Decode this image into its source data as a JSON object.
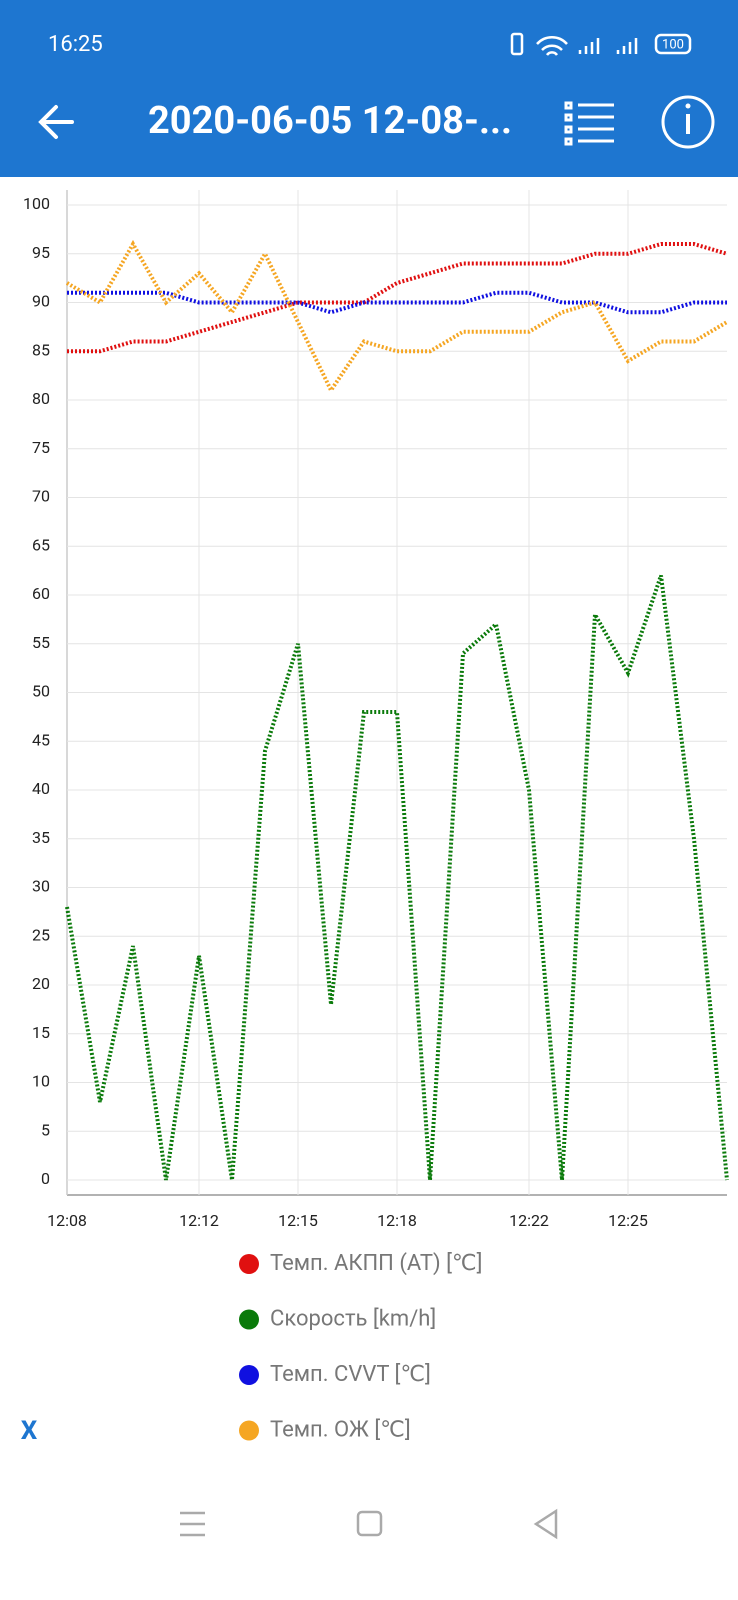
{
  "status_bar": {
    "time": "16:25",
    "battery": "100"
  },
  "toolbar": {
    "title": "2020-06-05 12-08-..."
  },
  "close_button": "X",
  "chart_data": {
    "type": "line",
    "x": [
      "12:08",
      "12:09",
      "12:10",
      "12:11",
      "12:12",
      "12:13",
      "12:14",
      "12:15",
      "12:16",
      "12:17",
      "12:18",
      "12:19",
      "12:20",
      "12:21",
      "12:22",
      "12:23",
      "12:24",
      "12:25",
      "12:26",
      "12:27",
      "12:28"
    ],
    "series": [
      {
        "name": "Темп. АКПП (AT) [℃]",
        "color": "#e01010",
        "values": [
          85,
          85,
          86,
          86,
          87,
          88,
          89,
          90,
          90,
          90,
          92,
          93,
          94,
          94,
          94,
          94,
          95,
          95,
          96,
          96,
          95
        ]
      },
      {
        "name": "Скорость [km/h]",
        "color": "#0a7a0a",
        "values": [
          28,
          8,
          24,
          0,
          23,
          0,
          44,
          55,
          18,
          48,
          48,
          0,
          54,
          57,
          40,
          0,
          58,
          52,
          62,
          35,
          0
        ]
      },
      {
        "name": "Темп. CVVT [℃]",
        "color": "#1010e0",
        "values": [
          91,
          91,
          91,
          91,
          90,
          90,
          90,
          90,
          89,
          90,
          90,
          90,
          90,
          91,
          91,
          90,
          90,
          89,
          89,
          90,
          90
        ]
      },
      {
        "name": "Темп. ОЖ [℃]",
        "color": "#f5a623",
        "values": [
          92,
          90,
          96,
          90,
          93,
          89,
          95,
          88,
          81,
          86,
          85,
          85,
          87,
          87,
          87,
          89,
          90,
          84,
          86,
          86,
          88
        ]
      }
    ],
    "xlim": [
      "12:08",
      "12:28"
    ],
    "xticks": [
      "12:08",
      "12:12",
      "12:15",
      "12:18",
      "12:22",
      "12:25"
    ],
    "ylim": [
      0,
      100
    ],
    "yticks": [
      0,
      5,
      10,
      15,
      20,
      25,
      30,
      35,
      40,
      45,
      50,
      55,
      60,
      65,
      70,
      75,
      80,
      85,
      90,
      95,
      100
    ],
    "grid": true
  }
}
